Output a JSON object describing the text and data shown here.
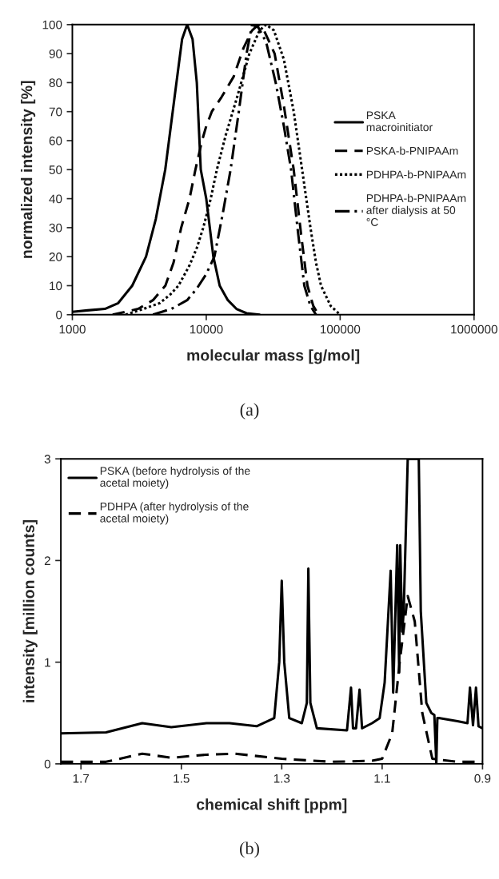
{
  "chart_data": [
    {
      "type": "line",
      "xlabel": "molecular mass [g/mol]",
      "ylabel": "normalized intensity [%]",
      "log": "x",
      "xlim": [
        1000,
        1000000
      ],
      "xticks": [
        1000,
        10000,
        100000,
        1000000
      ],
      "ylim": [
        0,
        100
      ],
      "yticks": [
        0,
        10,
        20,
        30,
        40,
        50,
        60,
        70,
        80,
        90,
        100
      ],
      "legend": "right",
      "grid": false,
      "annotations": [
        "(a)"
      ],
      "series": [
        {
          "name": "PSKA\nmacroinitiator",
          "color": "#000000",
          "line_style": "solid",
          "x": [
            1000,
            1300,
            1750,
            2200,
            2800,
            3550,
            4200,
            4940,
            5800,
            6600,
            7200,
            7900,
            8500,
            9100,
            10000,
            11300,
            12600,
            14500,
            16800,
            20000,
            25000
          ],
          "values": [
            1,
            1.5,
            2,
            4,
            10,
            20,
            33,
            50,
            75,
            95,
            100,
            95,
            80,
            50,
            40,
            20,
            10,
            5,
            2,
            0.5,
            0
          ]
        },
        {
          "name": "PSKA-b-PNIPAAm",
          "color": "#000000",
          "line_style": "dashed",
          "x": [
            2000,
            3100,
            4000,
            4950,
            5700,
            6500,
            7500,
            8300,
            9300,
            10000,
            11000,
            13000,
            16000,
            19000,
            22000,
            24500,
            27000,
            32400,
            38000,
            45000,
            51000,
            57000,
            63000,
            69000
          ],
          "values": [
            0,
            2,
            5,
            10,
            18,
            30,
            40,
            50,
            60,
            65,
            70,
            75,
            82,
            92,
            98,
            100,
            98,
            90,
            72,
            50,
            28,
            10,
            3,
            0
          ]
        },
        {
          "name": "PDHPA-b-PNIPAAm",
          "color": "#000000",
          "line_style": "dotted",
          "x": [
            2500,
            3400,
            4500,
            5400,
            6200,
            7500,
            8500,
            9500,
            10800,
            12000,
            14000,
            17000,
            21000,
            25000,
            28000,
            32000,
            38000,
            45000,
            52000,
            60000,
            66000,
            72000,
            85000,
            100000
          ],
          "values": [
            0,
            2,
            4,
            7,
            10,
            17,
            23,
            30,
            40,
            50,
            62,
            75,
            90,
            98,
            100,
            98,
            88,
            70,
            50,
            30,
            18,
            10,
            3,
            0
          ]
        },
        {
          "name": "PDHPA-b-PNIPAAm\nafter dialysis at 50\n°C",
          "color": "#000000",
          "line_style": "dashdot",
          "x": [
            4000,
            5500,
            7200,
            8500,
            10000,
            11500,
            13300,
            15200,
            17500,
            20000,
            22000,
            24500,
            28000,
            33000,
            38000,
            43000,
            48000,
            54000,
            60000,
            66000
          ],
          "values": [
            0,
            2,
            5,
            9,
            14,
            20,
            35,
            50,
            70,
            90,
            100,
            99,
            94,
            80,
            65,
            50,
            30,
            10,
            3,
            0
          ]
        }
      ]
    },
    {
      "type": "line",
      "xlabel": "chemical shift [ppm]",
      "ylabel": "intensity [million counts]",
      "xlim": [
        1.74,
        0.9
      ],
      "xticks": [
        1.7,
        1.5,
        1.3,
        1.1,
        0.9
      ],
      "ylim": [
        0,
        3
      ],
      "yticks": [
        0,
        1,
        2,
        3
      ],
      "legend": "top left",
      "grid": false,
      "annotations": [
        "(b)"
      ],
      "series": [
        {
          "name": "PSKA (before hydrolysis of the\nacetal moiety)",
          "color": "#000000",
          "line_style": "solid",
          "x": [
            1.74,
            1.65,
            1.578,
            1.52,
            1.45,
            1.404,
            1.35,
            1.315,
            1.305,
            1.3,
            1.295,
            1.285,
            1.26,
            1.25,
            1.247,
            1.243,
            1.23,
            1.17,
            1.162,
            1.158,
            1.152,
            1.145,
            1.14,
            1.12,
            1.105,
            1.095,
            1.083,
            1.078,
            1.07,
            1.066,
            1.064,
            1.06,
            1.057,
            1.049,
            1.038,
            1.027,
            1.023,
            1.012,
            1.002,
            0.996,
            0.992,
            0.99,
            0.985,
            0.95,
            0.93,
            0.925,
            0.919,
            0.913,
            0.908,
            0.9
          ],
          "values": [
            0.3,
            0.31,
            0.4,
            0.36,
            0.4,
            0.4,
            0.37,
            0.45,
            1.0,
            1.8,
            1.0,
            0.45,
            0.4,
            0.6,
            1.92,
            0.6,
            0.35,
            0.33,
            0.75,
            0.35,
            0.35,
            0.73,
            0.35,
            0.4,
            0.45,
            0.8,
            1.9,
            0.7,
            2.15,
            0.9,
            2.15,
            1.3,
            1.5,
            3.0,
            3.0,
            3.0,
            1.5,
            0.6,
            0.5,
            0.48,
            0,
            0.45,
            0.45,
            0.42,
            0.4,
            0.75,
            0.38,
            0.75,
            0.37,
            0.35
          ]
        },
        {
          "name": "PDHPA (after hydrolysis of the\nacetal moiety)",
          "color": "#000000",
          "line_style": "dashed",
          "x": [
            1.74,
            1.65,
            1.578,
            1.52,
            1.45,
            1.393,
            1.3,
            1.2,
            1.12,
            1.1,
            1.08,
            1.065,
            1.049,
            1.035,
            1.02,
            1.0,
            0.95,
            0.9
          ],
          "values": [
            0.02,
            0.02,
            0.1,
            0.06,
            0.09,
            0.1,
            0.05,
            0.02,
            0.03,
            0.05,
            0.3,
            1.0,
            1.65,
            1.4,
            0.5,
            0.05,
            0.02,
            0.02
          ]
        }
      ]
    }
  ]
}
